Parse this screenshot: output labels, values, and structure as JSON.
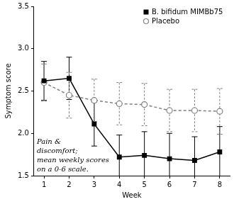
{
  "chart_data": {
    "type": "line",
    "x_label": "Week",
    "y_label": "Symptom score",
    "x": [
      1,
      2,
      3,
      4,
      5,
      6,
      7,
      8
    ],
    "xlim": [
      0.6,
      8.4
    ],
    "xticks": [
      1,
      2,
      3,
      4,
      5,
      6,
      7,
      8
    ],
    "ylim": [
      1.5,
      3.5
    ],
    "yticks": [
      1.5,
      {
        "value": 2,
        "label": "2.0"
      },
      2.5,
      {
        "value": 3,
        "label": "3.0"
      },
      3.5
    ],
    "grid": false,
    "legend": "top-right",
    "series": [
      {
        "name": "B. bifidum MIMBb75",
        "color": "#000000",
        "marker": "square",
        "line_style": "solid",
        "values": [
          2.62,
          2.65,
          2.11,
          1.72,
          1.74,
          1.7,
          1.68,
          1.78
        ],
        "errors": [
          0.23,
          0.25,
          0.26,
          0.26,
          0.28,
          0.3,
          0.28,
          0.3
        ]
      },
      {
        "name": "Placebo",
        "color": "#808080",
        "marker": "circle",
        "line_style": "dashed",
        "values": [
          2.6,
          2.45,
          2.39,
          2.35,
          2.34,
          2.27,
          2.27,
          2.26
        ],
        "errors": [
          0.22,
          0.27,
          0.25,
          0.25,
          0.25,
          0.25,
          0.25,
          0.27
        ]
      }
    ],
    "annotation": [
      "Pain &",
      "discomfort;",
      "mean weekly scores",
      "on a 0-6 scale."
    ]
  }
}
